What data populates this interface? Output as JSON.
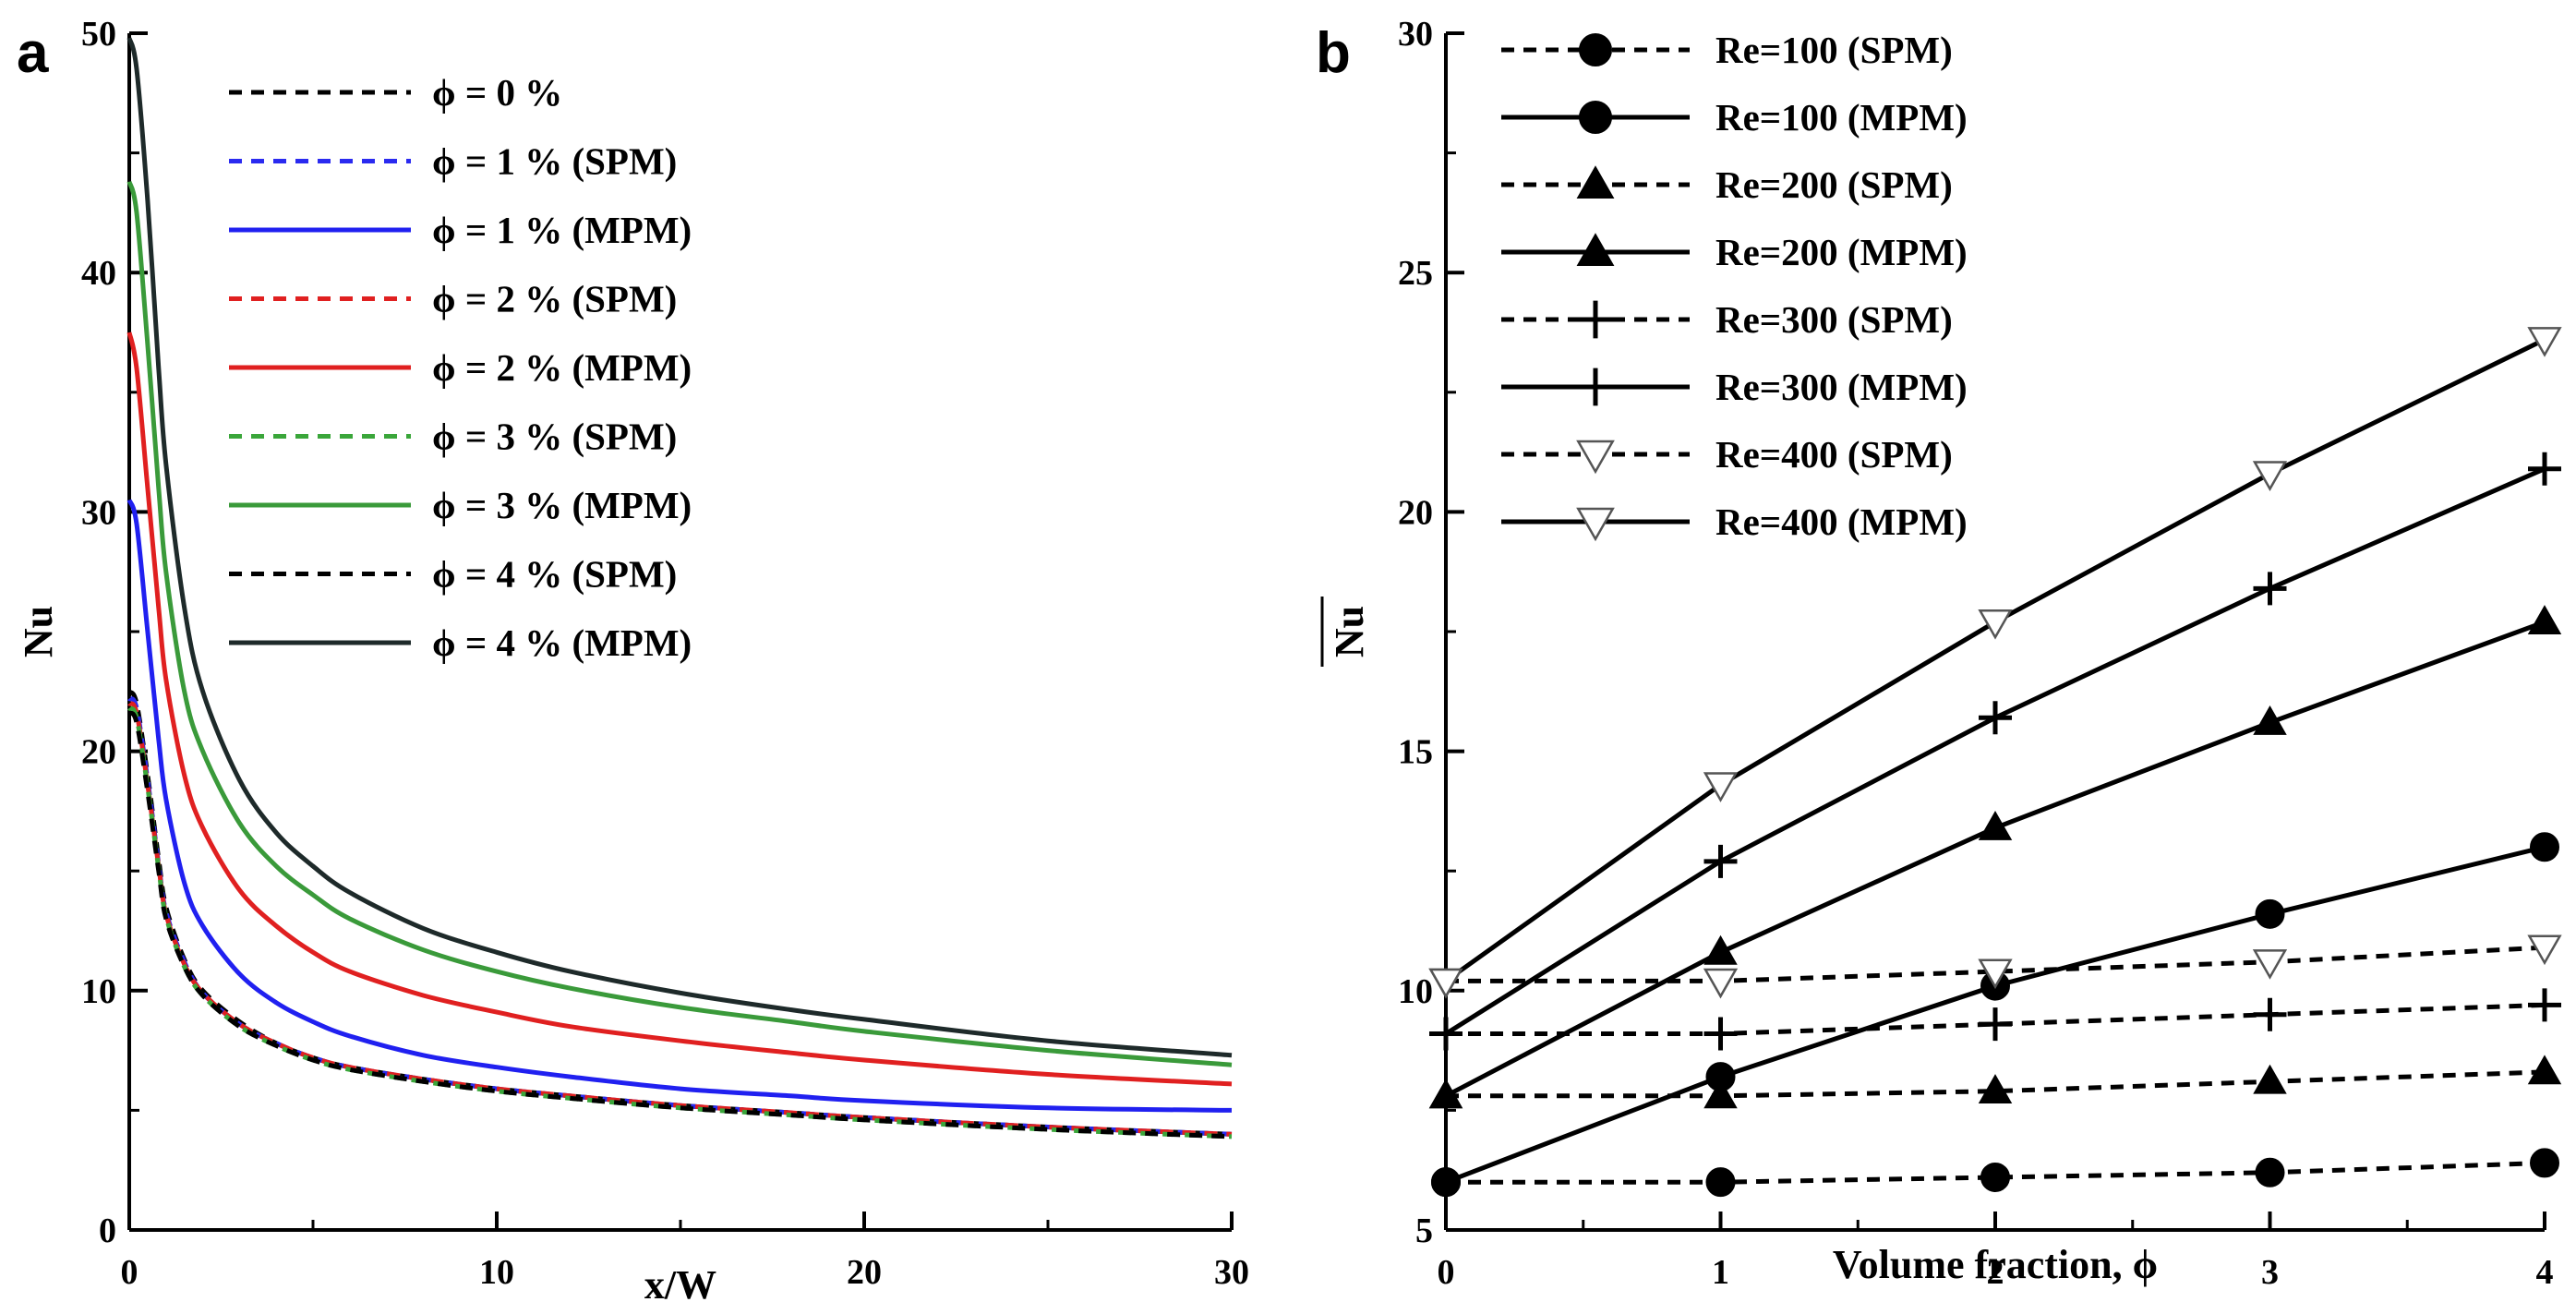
{
  "chart_data": [
    {
      "panel": "a",
      "type": "line",
      "xlabel": "x/W",
      "ylabel": "Nu",
      "xlim": [
        0,
        30
      ],
      "ylim": [
        0,
        50
      ],
      "xticks": [
        0,
        10,
        20,
        30
      ],
      "yticks": [
        0,
        10,
        20,
        30,
        40,
        50
      ],
      "legend_position": "top-right",
      "x": [
        0,
        0.2,
        0.5,
        0.8,
        1,
        1.5,
        2,
        3,
        4,
        5,
        6,
        8,
        10,
        12,
        15,
        18,
        20,
        25,
        30
      ],
      "series": [
        {
          "name": "ϕ = 0 %",
          "color": "#000000",
          "style": "dashed",
          "values": [
            22.5,
            22,
            19,
            15.5,
            13.5,
            11.3,
            10,
            8.7,
            7.8,
            7.2,
            6.8,
            6.3,
            5.9,
            5.6,
            5.2,
            4.9,
            4.7,
            4.3,
            4.0
          ]
        },
        {
          "name": "ϕ = 1 % (SPM)",
          "color": "#2a2af0",
          "style": "dashed",
          "values": [
            22.2,
            21.8,
            18.8,
            15.3,
            13.3,
            11.2,
            9.9,
            8.6,
            7.8,
            7.2,
            6.8,
            6.3,
            5.9,
            5.6,
            5.2,
            4.9,
            4.7,
            4.3,
            4.0
          ]
        },
        {
          "name": "ϕ = 1 % (MPM)",
          "color": "#2020f0",
          "style": "solid",
          "values": [
            30.5,
            29.5,
            25,
            20.5,
            18,
            14.5,
            12.7,
            10.7,
            9.5,
            8.7,
            8.1,
            7.3,
            6.8,
            6.4,
            5.9,
            5.6,
            5.4,
            5.1,
            5.0
          ]
        },
        {
          "name": "ϕ = 2 % (SPM)",
          "color": "#e02020",
          "style": "dashed",
          "values": [
            22,
            21.6,
            18.6,
            15.2,
            13.2,
            11.1,
            9.9,
            8.6,
            7.8,
            7.2,
            6.8,
            6.3,
            5.9,
            5.6,
            5.2,
            4.9,
            4.7,
            4.3,
            4.0
          ]
        },
        {
          "name": "ϕ = 2 % (MPM)",
          "color": "#e02020",
          "style": "solid",
          "values": [
            37.5,
            36,
            31,
            26,
            23,
            19,
            16.8,
            14.2,
            12.7,
            11.6,
            10.8,
            9.8,
            9.1,
            8.5,
            7.9,
            7.4,
            7.1,
            6.5,
            6.1
          ]
        },
        {
          "name": "ϕ = 3 % (SPM)",
          "color": "#3aa63a",
          "style": "dashed",
          "values": [
            21.8,
            21.4,
            18.5,
            15.1,
            13.1,
            11.0,
            9.8,
            8.5,
            7.7,
            7.1,
            6.7,
            6.2,
            5.8,
            5.5,
            5.1,
            4.8,
            4.6,
            4.2,
            3.9
          ]
        },
        {
          "name": "ϕ = 3 % (MPM)",
          "color": "#3a9a3a",
          "style": "solid",
          "values": [
            43.8,
            42.5,
            37,
            31,
            27.5,
            22.5,
            20,
            17,
            15.2,
            14,
            13,
            11.7,
            10.8,
            10.1,
            9.3,
            8.7,
            8.3,
            7.5,
            6.9
          ]
        },
        {
          "name": "ϕ = 4 % (SPM)",
          "color": "#000000",
          "style": "dashed",
          "values": [
            21.6,
            21.2,
            18.3,
            15,
            13,
            11.0,
            9.8,
            8.5,
            7.7,
            7.1,
            6.7,
            6.2,
            5.8,
            5.5,
            5.1,
            4.8,
            4.6,
            4.2,
            3.9
          ]
        },
        {
          "name": "ϕ = 4 % (MPM)",
          "color": "#1e2a2a",
          "style": "solid",
          "values": [
            49.8,
            48.5,
            43,
            36,
            32,
            26,
            22.5,
            18.8,
            16.6,
            15.2,
            14.1,
            12.6,
            11.6,
            10.8,
            9.9,
            9.2,
            8.8,
            7.9,
            7.3
          ]
        }
      ]
    },
    {
      "panel": "b",
      "type": "line",
      "xlabel": "Volume fraction, ϕ",
      "ylabel": "Nu",
      "xlim": [
        0,
        4
      ],
      "ylim": [
        5,
        30
      ],
      "xticks": [
        0,
        1,
        2,
        3,
        4
      ],
      "yticks": [
        5,
        10,
        15,
        20,
        25,
        30
      ],
      "legend_position": "top-left",
      "x": [
        0,
        1,
        2,
        3,
        4
      ],
      "series": [
        {
          "name": "Re=100 (SPM)",
          "marker": "circle",
          "style": "dashed",
          "values": [
            6.0,
            6.0,
            6.1,
            6.2,
            6.4
          ]
        },
        {
          "name": "Re=100 (MPM)",
          "marker": "circle",
          "style": "solid",
          "values": [
            6.0,
            8.2,
            10.1,
            11.6,
            13.0
          ]
        },
        {
          "name": "Re=200 (SPM)",
          "marker": "triangle",
          "style": "dashed",
          "values": [
            7.8,
            7.8,
            7.9,
            8.1,
            8.3
          ]
        },
        {
          "name": "Re=200 (MPM)",
          "marker": "triangle",
          "style": "solid",
          "values": [
            7.8,
            10.8,
            13.4,
            15.6,
            17.7
          ]
        },
        {
          "name": "Re=300 (SPM)",
          "marker": "plus",
          "style": "dashed",
          "values": [
            9.1,
            9.1,
            9.3,
            9.5,
            9.7
          ]
        },
        {
          "name": "Re=300 (MPM)",
          "marker": "plus",
          "style": "solid",
          "values": [
            9.1,
            12.7,
            15.7,
            18.4,
            20.9
          ]
        },
        {
          "name": "Re=400 (SPM)",
          "marker": "triangle-down-open",
          "style": "dashed",
          "values": [
            10.2,
            10.2,
            10.4,
            10.6,
            10.9
          ]
        },
        {
          "name": "Re=400 (MPM)",
          "marker": "triangle-down-open",
          "style": "solid",
          "values": [
            10.2,
            14.3,
            17.7,
            20.8,
            23.6
          ]
        }
      ]
    }
  ]
}
